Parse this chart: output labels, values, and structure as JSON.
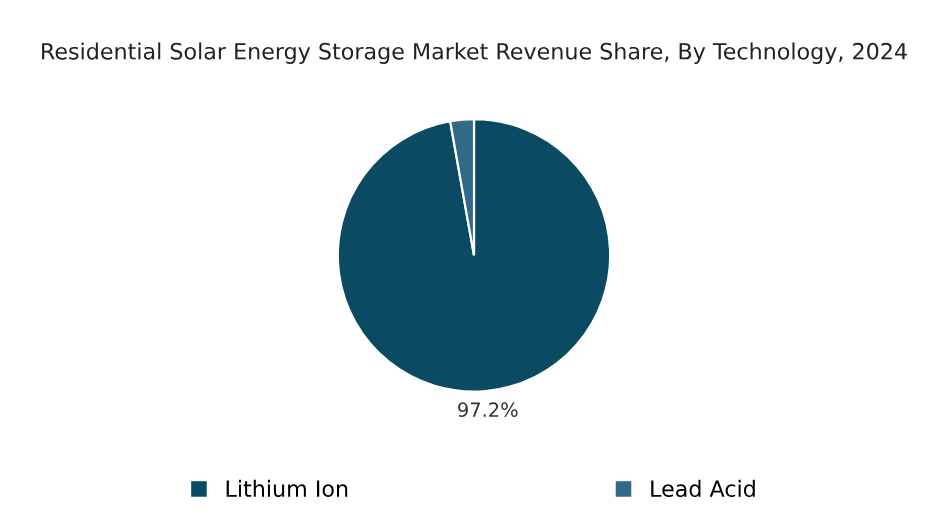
{
  "chart_data": {
    "type": "pie",
    "title": "Residential Solar Energy Storage Market Revenue Share, By Technology, 2024",
    "categories": [
      "Lithium Ion",
      "Lead Acid"
    ],
    "values": [
      97.2,
      2.8
    ],
    "colors": [
      "#0b4a63",
      "#2f6b88"
    ],
    "value_labels": [
      "97.2%",
      null
    ],
    "legend": "bottom"
  }
}
